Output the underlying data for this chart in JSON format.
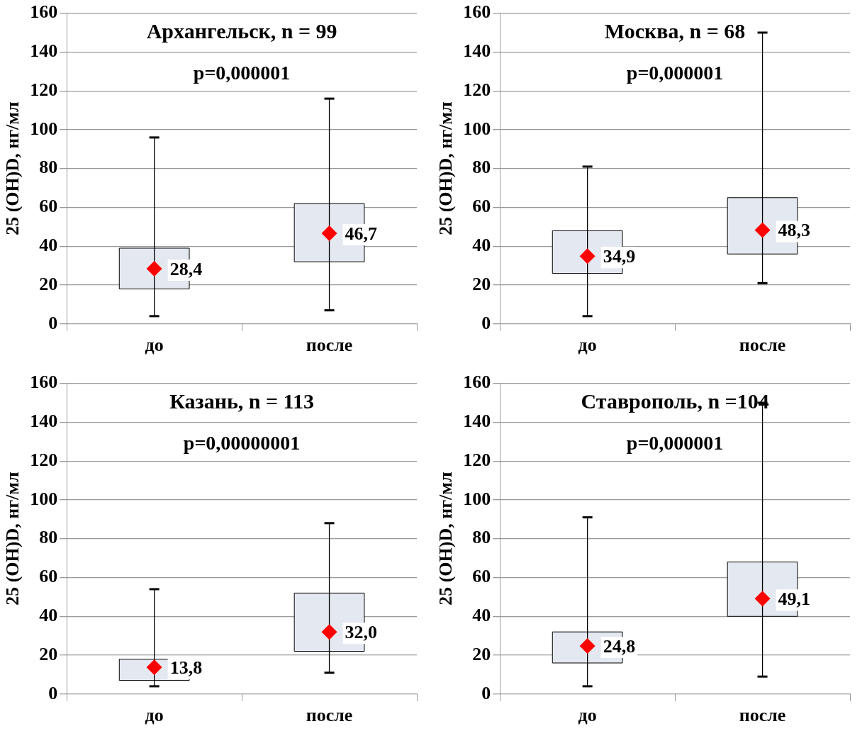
{
  "chart_data": [
    {
      "type": "box",
      "title": "Архангельск, n = 99",
      "ylabel": "25 (OH)D, нг/мл",
      "annotations": [
        "p=0,000001"
      ],
      "categories": [
        "до",
        "после"
      ],
      "color": "#e4e8f0",
      "marker": "diamond",
      "grid": "y",
      "ylim": [
        0,
        160
      ],
      "yticks": [
        0,
        20,
        40,
        60,
        80,
        100,
        120,
        140,
        160
      ],
      "boxes": [
        {
          "low": 4,
          "q1": 18,
          "median": 28.4,
          "q3": 39,
          "high": 96
        },
        {
          "low": 7,
          "q1": 32,
          "median": 46.7,
          "q3": 62,
          "high": 116
        }
      ],
      "value_labels": [
        "28,4",
        "46,7"
      ]
    },
    {
      "type": "box",
      "title": "Москва, n = 68",
      "ylabel": "25 (OH)D, нг/мл",
      "annotations": [
        "p=0,000001"
      ],
      "categories": [
        "до",
        "после"
      ],
      "color": "#e4e8f0",
      "marker": "diamond",
      "grid": "y",
      "ylim": [
        0,
        160
      ],
      "yticks": [
        0,
        20,
        40,
        60,
        80,
        100,
        120,
        140,
        160
      ],
      "boxes": [
        {
          "low": 4,
          "q1": 26,
          "median": 34.9,
          "q3": 48,
          "high": 81
        },
        {
          "low": 21,
          "q1": 36,
          "median": 48.3,
          "q3": 65,
          "high": 150
        }
      ],
      "value_labels": [
        "34,9",
        "48,3"
      ]
    },
    {
      "type": "box",
      "title": "Казань, n = 113",
      "ylabel": "25 (OH)D, нг/мл",
      "annotations": [
        "p=0,00000001"
      ],
      "categories": [
        "до",
        "после"
      ],
      "color": "#e4e8f0",
      "marker": "diamond",
      "grid": "y",
      "ylim": [
        0,
        160
      ],
      "yticks": [
        0,
        20,
        40,
        60,
        80,
        100,
        120,
        140,
        160
      ],
      "boxes": [
        {
          "low": 4,
          "q1": 7,
          "median": 13.8,
          "q3": 18,
          "high": 54
        },
        {
          "low": 11,
          "q1": 22,
          "median": 32.0,
          "q3": 52,
          "high": 88
        }
      ],
      "value_labels": [
        "13,8",
        "32,0"
      ]
    },
    {
      "type": "box",
      "title": "Ставрополь, n =104",
      "ylabel": "25 (OH)D, нг/мл",
      "annotations": [
        "p=0,000001"
      ],
      "categories": [
        "до",
        "после"
      ],
      "color": "#e4e8f0",
      "marker": "diamond",
      "grid": "y",
      "ylim": [
        0,
        160
      ],
      "yticks": [
        0,
        20,
        40,
        60,
        80,
        100,
        120,
        140,
        160
      ],
      "boxes": [
        {
          "low": 4,
          "q1": 16,
          "median": 24.8,
          "q3": 32,
          "high": 91
        },
        {
          "low": 9,
          "q1": 40,
          "median": 49.1,
          "q3": 68,
          "high": 150
        }
      ],
      "value_labels": [
        "24,8",
        "49,1"
      ]
    }
  ]
}
